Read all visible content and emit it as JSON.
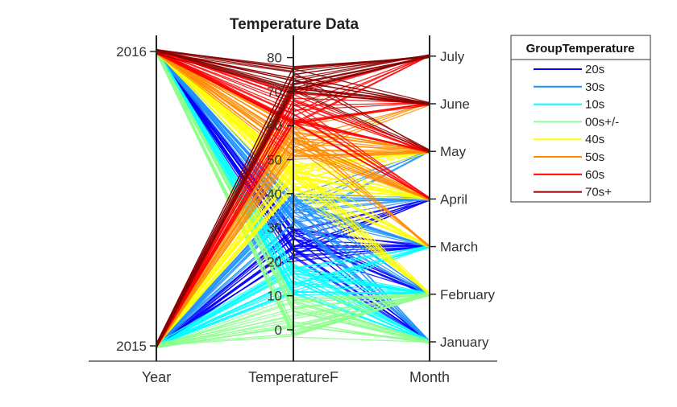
{
  "chart_data": {
    "type": "parallel-coordinates",
    "title": "Temperature Data",
    "coordinates": [
      "Year",
      "TemperatureF",
      "Month"
    ],
    "axes": {
      "Year": {
        "ticks": [
          "2015",
          "2016"
        ],
        "range": [
          2015,
          2016
        ]
      },
      "TemperatureF": {
        "ticks": [
          "0",
          "10",
          "20",
          "30",
          "40",
          "50",
          "60",
          "70",
          "80"
        ],
        "range": [
          -3,
          85
        ]
      },
      "Month": {
        "ticks": [
          "January",
          "February",
          "March",
          "April",
          "May",
          "June",
          "July"
        ]
      }
    },
    "grid": false,
    "legend": {
      "title": "GroupTemperature",
      "placement": "top-right outside",
      "entries": [
        {
          "label": "20s",
          "color": "#0000ff"
        },
        {
          "label": "30s",
          "color": "#1e90ff"
        },
        {
          "label": "10s",
          "color": "#00ffff"
        },
        {
          "label": "00s+/-",
          "color": "#8cff8c"
        },
        {
          "label": "40s",
          "color": "#ffff00"
        },
        {
          "label": "50s",
          "color": "#ff8c00"
        },
        {
          "label": "60s",
          "color": "#ff0000"
        },
        {
          "label": "70s+",
          "color": "#8b0000"
        }
      ]
    },
    "series": [
      {
        "group": "20s",
        "temp_range": [
          20,
          30
        ],
        "months": [
          "January",
          "February",
          "March",
          "April"
        ],
        "years": [
          "2015",
          "2016"
        ]
      },
      {
        "group": "30s",
        "temp_range": [
          30,
          40
        ],
        "months": [
          "January",
          "February",
          "March",
          "April",
          "May"
        ],
        "years": [
          "2015",
          "2016"
        ]
      },
      {
        "group": "10s",
        "temp_range": [
          10,
          20
        ],
        "months": [
          "January",
          "February",
          "March"
        ],
        "years": [
          "2015",
          "2016"
        ]
      },
      {
        "group": "00s+/-",
        "temp_range": [
          -3,
          10
        ],
        "months": [
          "January",
          "February"
        ],
        "years": [
          "2015",
          "2016"
        ]
      },
      {
        "group": "40s",
        "temp_range": [
          40,
          50
        ],
        "months": [
          "February",
          "March",
          "April",
          "May"
        ],
        "years": [
          "2015",
          "2016"
        ]
      },
      {
        "group": "50s",
        "temp_range": [
          50,
          60
        ],
        "months": [
          "March",
          "April",
          "May",
          "June"
        ],
        "years": [
          "2015",
          "2016"
        ]
      },
      {
        "group": "60s",
        "temp_range": [
          60,
          70
        ],
        "months": [
          "April",
          "May",
          "June",
          "July"
        ],
        "years": [
          "2015",
          "2016"
        ]
      },
      {
        "group": "70s+",
        "temp_range": [
          70,
          78
        ],
        "months": [
          "May",
          "June",
          "July"
        ],
        "years": [
          "2015",
          "2016"
        ]
      }
    ]
  }
}
